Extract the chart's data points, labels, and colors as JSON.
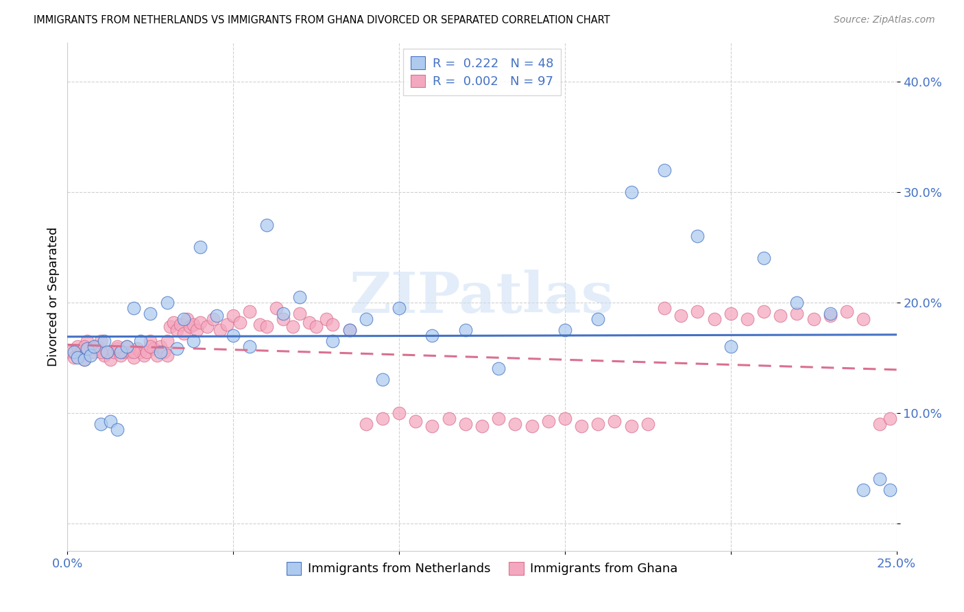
{
  "title": "IMMIGRANTS FROM NETHERLANDS VS IMMIGRANTS FROM GHANA DIVORCED OR SEPARATED CORRELATION CHART",
  "source": "Source: ZipAtlas.com",
  "ylabel": "Divorced or Separated",
  "ytick_labels": [
    "",
    "10.0%",
    "20.0%",
    "30.0%",
    "40.0%"
  ],
  "yticks": [
    0.0,
    0.1,
    0.2,
    0.3,
    0.4
  ],
  "xlim": [
    0.0,
    0.25
  ],
  "ylim": [
    -0.025,
    0.435
  ],
  "netherlands_color": "#aecbef",
  "ghana_color": "#f4a8c0",
  "netherlands_line_color": "#4472c4",
  "ghana_line_color": "#d97090",
  "legend_netherlands_R": "0.222",
  "legend_netherlands_N": "48",
  "legend_ghana_R": "0.002",
  "legend_ghana_N": "97",
  "watermark": "ZIPatlas",
  "netherlands_x": [
    0.002,
    0.003,
    0.005,
    0.006,
    0.007,
    0.008,
    0.01,
    0.011,
    0.012,
    0.013,
    0.015,
    0.016,
    0.018,
    0.02,
    0.022,
    0.025,
    0.028,
    0.03,
    0.033,
    0.035,
    0.038,
    0.04,
    0.045,
    0.05,
    0.055,
    0.06,
    0.065,
    0.07,
    0.08,
    0.085,
    0.09,
    0.095,
    0.1,
    0.11,
    0.12,
    0.13,
    0.15,
    0.16,
    0.17,
    0.18,
    0.19,
    0.2,
    0.21,
    0.22,
    0.23,
    0.24,
    0.245,
    0.248
  ],
  "netherlands_y": [
    0.155,
    0.15,
    0.148,
    0.158,
    0.152,
    0.16,
    0.09,
    0.165,
    0.155,
    0.092,
    0.085,
    0.155,
    0.16,
    0.195,
    0.165,
    0.19,
    0.155,
    0.2,
    0.158,
    0.185,
    0.165,
    0.25,
    0.188,
    0.17,
    0.16,
    0.27,
    0.19,
    0.205,
    0.165,
    0.175,
    0.185,
    0.13,
    0.195,
    0.17,
    0.175,
    0.14,
    0.175,
    0.185,
    0.3,
    0.32,
    0.26,
    0.16,
    0.24,
    0.2,
    0.19,
    0.03,
    0.04,
    0.03
  ],
  "ghana_x": [
    0.001,
    0.002,
    0.003,
    0.004,
    0.005,
    0.006,
    0.007,
    0.008,
    0.009,
    0.01,
    0.011,
    0.012,
    0.013,
    0.014,
    0.015,
    0.016,
    0.017,
    0.018,
    0.019,
    0.02,
    0.021,
    0.022,
    0.023,
    0.024,
    0.025,
    0.026,
    0.027,
    0.028,
    0.029,
    0.03,
    0.031,
    0.032,
    0.033,
    0.034,
    0.035,
    0.036,
    0.037,
    0.038,
    0.039,
    0.04,
    0.042,
    0.044,
    0.046,
    0.048,
    0.05,
    0.052,
    0.055,
    0.058,
    0.06,
    0.063,
    0.065,
    0.068,
    0.07,
    0.073,
    0.075,
    0.078,
    0.08,
    0.085,
    0.09,
    0.095,
    0.1,
    0.105,
    0.11,
    0.115,
    0.12,
    0.125,
    0.13,
    0.135,
    0.14,
    0.145,
    0.15,
    0.155,
    0.16,
    0.165,
    0.17,
    0.175,
    0.18,
    0.185,
    0.19,
    0.195,
    0.2,
    0.205,
    0.21,
    0.215,
    0.22,
    0.225,
    0.23,
    0.235,
    0.24,
    0.245,
    0.248,
    0.005,
    0.01,
    0.015,
    0.02,
    0.025,
    0.03
  ],
  "ghana_y": [
    0.155,
    0.15,
    0.16,
    0.155,
    0.148,
    0.165,
    0.158,
    0.155,
    0.16,
    0.165,
    0.152,
    0.155,
    0.148,
    0.155,
    0.158,
    0.152,
    0.155,
    0.16,
    0.155,
    0.15,
    0.158,
    0.155,
    0.152,
    0.155,
    0.165,
    0.158,
    0.152,
    0.16,
    0.155,
    0.165,
    0.178,
    0.182,
    0.175,
    0.18,
    0.172,
    0.185,
    0.178,
    0.18,
    0.175,
    0.182,
    0.178,
    0.185,
    0.175,
    0.18,
    0.188,
    0.182,
    0.192,
    0.18,
    0.178,
    0.195,
    0.185,
    0.178,
    0.19,
    0.182,
    0.178,
    0.185,
    0.18,
    0.175,
    0.09,
    0.095,
    0.1,
    0.092,
    0.088,
    0.095,
    0.09,
    0.088,
    0.095,
    0.09,
    0.088,
    0.092,
    0.095,
    0.088,
    0.09,
    0.092,
    0.088,
    0.09,
    0.195,
    0.188,
    0.192,
    0.185,
    0.19,
    0.185,
    0.192,
    0.188,
    0.19,
    0.185,
    0.188,
    0.192,
    0.185,
    0.09,
    0.095,
    0.16,
    0.155,
    0.16,
    0.155,
    0.16,
    0.152
  ]
}
